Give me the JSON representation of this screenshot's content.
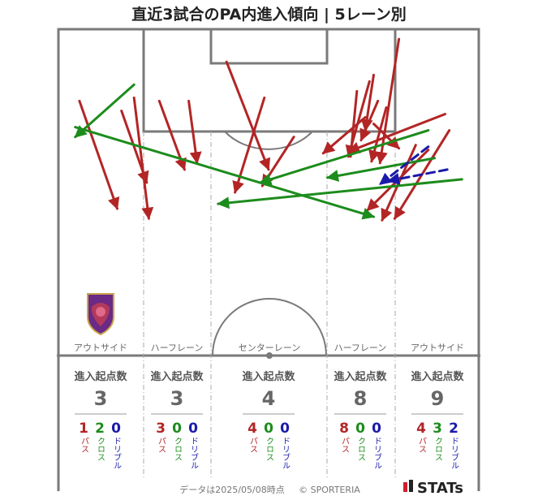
{
  "chart_data": {
    "type": "pitch-arrow-map",
    "title": "直近3試合のPA内進入傾向 | 5レーン別",
    "lanes": [
      {
        "name": "アウトサイド",
        "label": "進入起点数",
        "total": 3,
        "pass": 1,
        "cross": 2,
        "dribble": 0
      },
      {
        "name": "ハーフレーン",
        "label": "進入起点数",
        "total": 3,
        "pass": 3,
        "cross": 0,
        "dribble": 0
      },
      {
        "name": "センターレーン",
        "label": "進入起点数",
        "total": 4,
        "pass": 4,
        "cross": 0,
        "dribble": 0
      },
      {
        "name": "ハーフレーン",
        "label": "進入起点数",
        "total": 8,
        "pass": 8,
        "cross": 0,
        "dribble": 0
      },
      {
        "name": "アウトサイド",
        "label": "進入起点数",
        "total": 9,
        "pass": 4,
        "cross": 3,
        "dribble": 2
      }
    ],
    "legend": {
      "pass": "パス",
      "cross": "クロス",
      "dribble": "ドリブル"
    },
    "arrows": [
      {
        "type": "pass",
        "lane": 0,
        "from": [
          5.0,
          22.0
        ],
        "to": [
          14.0,
          55.0
        ]
      },
      {
        "type": "pass",
        "lane": 1,
        "from": [
          15.0,
          25.0
        ],
        "to": [
          21.0,
          47.0
        ]
      },
      {
        "type": "pass",
        "lane": 1,
        "from": [
          18.0,
          21.0
        ],
        "to": [
          21.5,
          58.0
        ]
      },
      {
        "type": "pass",
        "lane": 1,
        "from": [
          24.0,
          22.0
        ],
        "to": [
          30.0,
          43.0
        ]
      },
      {
        "type": "pass",
        "lane": 2,
        "from": [
          40.0,
          10.0
        ],
        "to": [
          50.0,
          43.0
        ]
      },
      {
        "type": "pass",
        "lane": 2,
        "from": [
          31.0,
          22.0
        ],
        "to": [
          33.0,
          41.0
        ]
      },
      {
        "type": "pass",
        "lane": 2,
        "from": [
          49.0,
          21.0
        ],
        "to": [
          42.0,
          50.0
        ]
      },
      {
        "type": "pass",
        "lane": 2,
        "from": [
          56.0,
          33.0
        ],
        "to": [
          48.5,
          48.0
        ]
      },
      {
        "type": "pass",
        "lane": 3,
        "from": [
          81.0,
          3.0
        ],
        "to": [
          76.5,
          41.0
        ]
      },
      {
        "type": "pass",
        "lane": 3,
        "from": [
          75.0,
          14.0
        ],
        "to": [
          73.0,
          31.0
        ]
      },
      {
        "type": "pass",
        "lane": 3,
        "from": [
          74.0,
          16.0
        ],
        "to": [
          69.0,
          39.0
        ]
      },
      {
        "type": "pass",
        "lane": 3,
        "from": [
          71.0,
          19.0
        ],
        "to": [
          69.5,
          39.0
        ]
      },
      {
        "type": "pass",
        "lane": 3,
        "from": [
          76.0,
          22.0
        ],
        "to": [
          72.0,
          34.0
        ]
      },
      {
        "type": "pass",
        "lane": 3,
        "from": [
          78.0,
          24.0
        ],
        "to": [
          74.5,
          40.5
        ]
      },
      {
        "type": "pass",
        "lane": 3,
        "from": [
          73.0,
          27.0
        ],
        "to": [
          63.0,
          38.0
        ]
      },
      {
        "type": "pass",
        "lane": 3,
        "from": [
          75.0,
          29.0
        ],
        "to": [
          81.0,
          36.5
        ]
      },
      {
        "type": "pass",
        "lane": 4,
        "from": [
          93.0,
          31.0
        ],
        "to": [
          80.0,
          58.0
        ]
      },
      {
        "type": "pass",
        "lane": 4,
        "from": [
          88.0,
          37.0
        ],
        "to": [
          73.5,
          55.5
        ]
      },
      {
        "type": "pass",
        "lane": 4,
        "from": [
          85.0,
          35.5
        ],
        "to": [
          77.0,
          58.5
        ]
      },
      {
        "type": "pass",
        "lane": 4,
        "from": [
          92.0,
          26.0
        ],
        "to": [
          69.0,
          37.5
        ]
      },
      {
        "type": "cross",
        "lane": 0,
        "from": [
          4.0,
          30.0
        ],
        "to": [
          75.0,
          57.5
        ]
      },
      {
        "type": "cross",
        "lane": 4,
        "from": [
          96.0,
          46.0
        ],
        "to": [
          38.0,
          53.5
        ]
      },
      {
        "type": "cross",
        "lane": 4,
        "from": [
          88.0,
          31.0
        ],
        "to": [
          48.0,
          47.0
        ]
      },
      {
        "type": "cross",
        "lane": 4,
        "from": [
          89.5,
          39.5
        ],
        "to": [
          64.0,
          45.5
        ]
      },
      {
        "type": "cross",
        "lane": 0,
        "from": [
          18.0,
          17.0
        ],
        "to": [
          4.0,
          33.0
        ]
      },
      {
        "type": "dribble",
        "lane": 4,
        "from": [
          92.5,
          43.0
        ],
        "to": [
          78.5,
          46.5
        ]
      },
      {
        "type": "dribble",
        "lane": 4,
        "from": [
          88.0,
          36.0
        ],
        "to": [
          76.5,
          47.5
        ]
      }
    ]
  },
  "logo": {
    "name": "club-crest-icon",
    "text": "KYOTO SANGA"
  },
  "footer": {
    "note": "データは2025/05/08時点",
    "copyright": "© SPORTERIA",
    "brand": "STATs"
  },
  "colors": {
    "pass": "#b32525",
    "cross": "#1c8c1c",
    "dribble": "#1a1aaa",
    "pitch": "#7a7a7a"
  }
}
